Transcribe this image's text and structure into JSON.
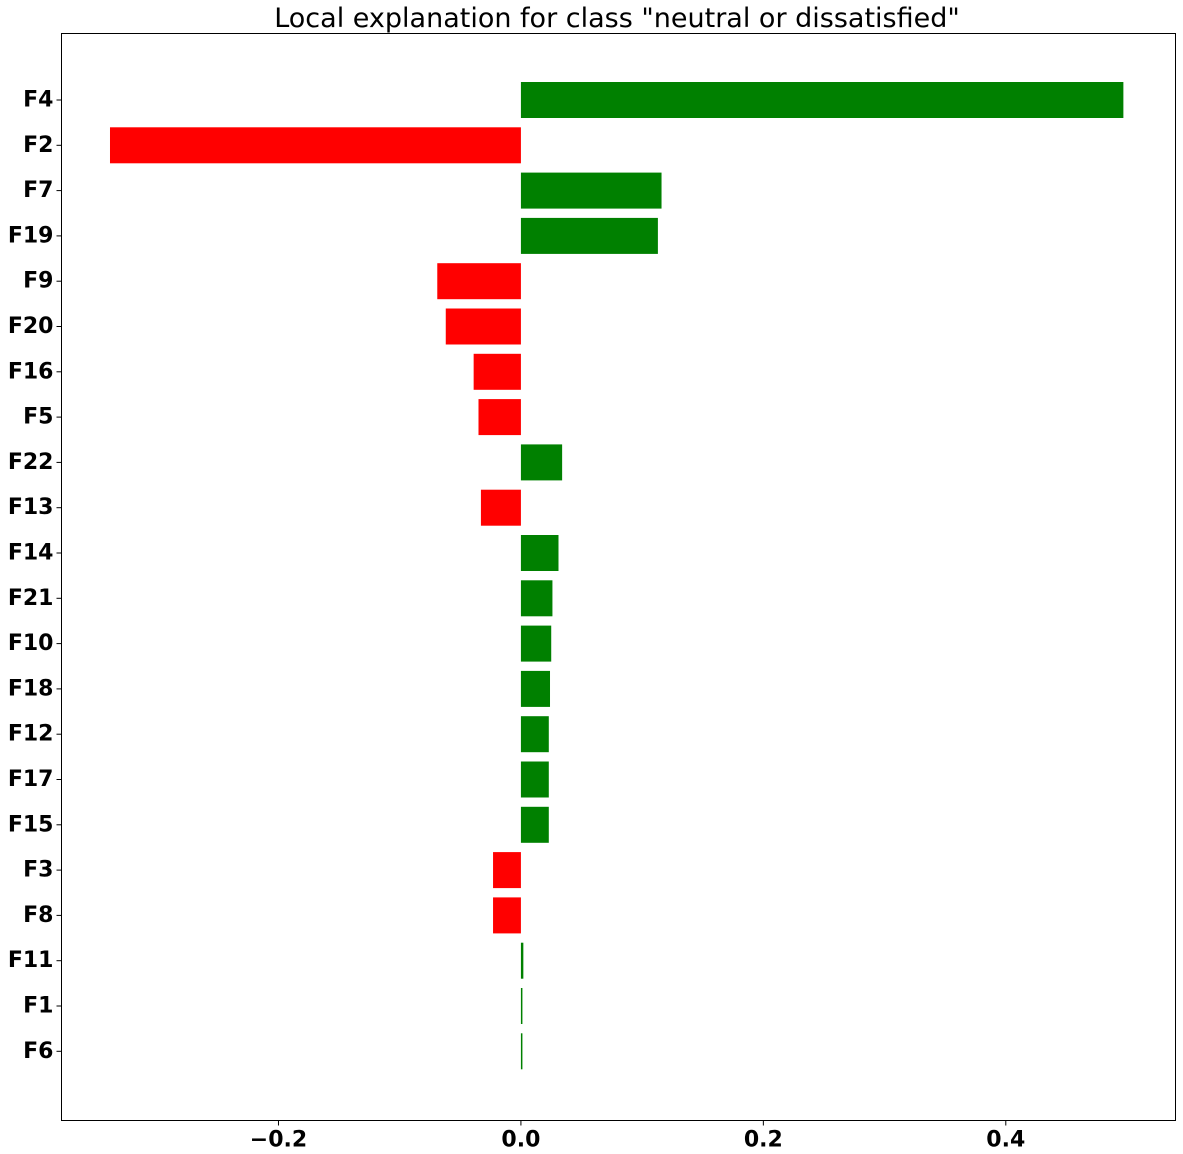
{
  "chart_data": {
    "type": "bar",
    "orientation": "horizontal",
    "title": "Local explanation for class \"neutral or dissatisfied\"",
    "xlabel": "",
    "ylabel": "",
    "categories": [
      "F4",
      "F2",
      "F7",
      "F19",
      "F9",
      "F20",
      "F16",
      "F5",
      "F22",
      "F13",
      "F14",
      "F21",
      "F10",
      "F18",
      "F12",
      "F17",
      "F15",
      "F3",
      "F8",
      "F11",
      "F1",
      "F6"
    ],
    "values": [
      0.497,
      -0.339,
      0.116,
      0.113,
      -0.069,
      -0.062,
      -0.039,
      -0.035,
      0.034,
      -0.033,
      0.031,
      0.026,
      0.025,
      0.024,
      0.023,
      0.023,
      0.023,
      -0.023,
      -0.023,
      0.002,
      0.001,
      0.001
    ],
    "xlim": [
      -0.379,
      0.54
    ],
    "xticks": [
      -0.2,
      0.0,
      0.2,
      0.4
    ],
    "xtick_labels": [
      "−0.2",
      "0.0",
      "0.2",
      "0.4"
    ],
    "positive_color": "#008000",
    "negative_color": "#ff0000",
    "grid": false,
    "legend": "none"
  }
}
